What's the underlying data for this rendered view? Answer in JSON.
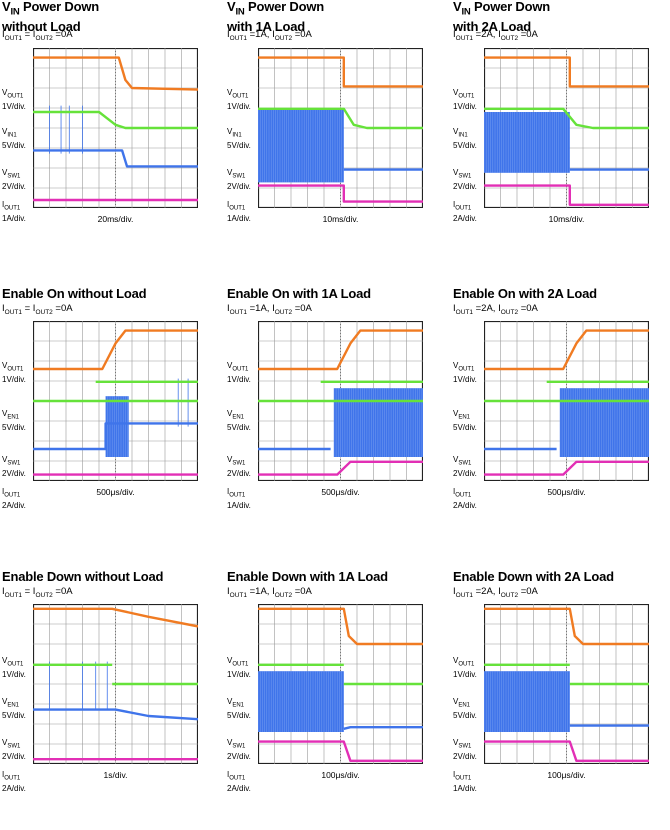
{
  "chart_data": [
    {
      "type": "line",
      "title_main": "V",
      "title_sub": "IN",
      "title_rest": " Power Down",
      "title_line2": "without Load",
      "conditions": {
        "i1": "I",
        "s1": "OUT1",
        "m": " = I",
        "s2": "OUT2",
        "e": " =0A"
      },
      "time_div": "20ms/div.",
      "channels": [
        {
          "name": "V",
          "sub": "OUT1",
          "scale": "1V/div."
        },
        {
          "name": "V",
          "sub": "IN1",
          "scale": "5V/div."
        },
        {
          "name": "V",
          "sub": "SW1",
          "scale": "2V/div."
        },
        {
          "name": "I",
          "sub": "OUT1",
          "scale": "1A/div."
        }
      ]
    },
    {
      "type": "line",
      "title_main": "V",
      "title_sub": "IN",
      "title_rest": " Power Down",
      "title_line2": "with 1A Load",
      "conditions": {
        "i1": "I",
        "s1": "OUT1",
        "m": " =1A, I",
        "s2": "OUT2",
        "e": " =0A"
      },
      "time_div": "10ms/div.",
      "channels": [
        {
          "name": "V",
          "sub": "OUT1",
          "scale": "1V/div."
        },
        {
          "name": "V",
          "sub": "IN1",
          "scale": "5V/div."
        },
        {
          "name": "V",
          "sub": "SW1",
          "scale": "2V/div."
        },
        {
          "name": "I",
          "sub": "OUT1",
          "scale": "1A/div."
        }
      ]
    },
    {
      "type": "line",
      "title_main": "V",
      "title_sub": "IN",
      "title_rest": " Power Down",
      "title_line2": "with 2A Load",
      "conditions": {
        "i1": "I",
        "s1": "OUT1",
        "m": " =2A, I",
        "s2": "OUT2",
        "e": " =0A"
      },
      "time_div": "10ms/div.",
      "channels": [
        {
          "name": "V",
          "sub": "OUT1",
          "scale": "1V/div."
        },
        {
          "name": "V",
          "sub": "IN1",
          "scale": "5V/div."
        },
        {
          "name": "V",
          "sub": "SW1",
          "scale": "2V/div."
        },
        {
          "name": "I",
          "sub": "OUT1",
          "scale": "2A/div."
        }
      ]
    },
    {
      "type": "line",
      "title_main": "Enable On without Load",
      "title_sub": "",
      "title_rest": "",
      "title_line2": "",
      "conditions": {
        "i1": "I",
        "s1": "OUT1",
        "m": " = I",
        "s2": "OUT2",
        "e": " =0A"
      },
      "time_div": "500μs/div.",
      "channels": [
        {
          "name": "V",
          "sub": "OUT1",
          "scale": "1V/div."
        },
        {
          "name": "V",
          "sub": "EN1",
          "scale": "5V/div."
        },
        {
          "name": "V",
          "sub": "SW1",
          "scale": "2V/div."
        },
        {
          "name": "I",
          "sub": "OUT1",
          "scale": "2A/div."
        }
      ]
    },
    {
      "type": "line",
      "title_main": "Enable On with 1A Load",
      "title_sub": "",
      "title_rest": "",
      "title_line2": "",
      "conditions": {
        "i1": "I",
        "s1": "OUT1",
        "m": " =1A, I",
        "s2": "OUT2",
        "e": " =0A"
      },
      "time_div": "500μs/div.",
      "channels": [
        {
          "name": "V",
          "sub": "OUT1",
          "scale": "1V/div."
        },
        {
          "name": "V",
          "sub": "EN1",
          "scale": "5V/div."
        },
        {
          "name": "V",
          "sub": "SW1",
          "scale": "2V/div."
        },
        {
          "name": "I",
          "sub": "OUT1",
          "scale": "1A/div."
        }
      ]
    },
    {
      "type": "line",
      "title_main": "Enable On with 2A Load",
      "title_sub": "",
      "title_rest": "",
      "title_line2": "",
      "conditions": {
        "i1": "I",
        "s1": "OUT1",
        "m": " =2A, I",
        "s2": "OUT2",
        "e": " =0A"
      },
      "time_div": "500μs/div.",
      "channels": [
        {
          "name": "V",
          "sub": "OUT1",
          "scale": "1V/div."
        },
        {
          "name": "V",
          "sub": "EN1",
          "scale": "5V/div."
        },
        {
          "name": "V",
          "sub": "SW1",
          "scale": "2V/div."
        },
        {
          "name": "I",
          "sub": "OUT1",
          "scale": "2A/div."
        }
      ]
    },
    {
      "type": "line",
      "title_main": "Enable Down without Load",
      "title_sub": "",
      "title_rest": "",
      "title_line2": "",
      "conditions": {
        "i1": "I",
        "s1": "OUT1",
        "m": " = I",
        "s2": "OUT2",
        "e": " =0A"
      },
      "time_div": "1s/div.",
      "channels": [
        {
          "name": "V",
          "sub": "OUT1",
          "scale": "1V/div."
        },
        {
          "name": "V",
          "sub": "EN1",
          "scale": "5V/div."
        },
        {
          "name": "V",
          "sub": "SW1",
          "scale": "2V/div."
        },
        {
          "name": "I",
          "sub": "OUT1",
          "scale": "2A/div."
        }
      ]
    },
    {
      "type": "line",
      "title_main": "Enable Down with 1A Load",
      "title_sub": "",
      "title_rest": "",
      "title_line2": "",
      "conditions": {
        "i1": "I",
        "s1": "OUT1",
        "m": " =1A, I",
        "s2": "OUT2",
        "e": " =0A"
      },
      "time_div": "100μs/div.",
      "channels": [
        {
          "name": "V",
          "sub": "OUT1",
          "scale": "1V/div."
        },
        {
          "name": "V",
          "sub": "EN1",
          "scale": "5V/div."
        },
        {
          "name": "V",
          "sub": "SW1",
          "scale": "2V/div."
        },
        {
          "name": "I",
          "sub": "OUT1",
          "scale": "2A/div."
        }
      ]
    },
    {
      "type": "line",
      "title_main": "Enable Down with 2A Load",
      "title_sub": "",
      "title_rest": "",
      "title_line2": "",
      "conditions": {
        "i1": "I",
        "s1": "OUT1",
        "m": " =2A, I",
        "s2": "OUT2",
        "e": " =0A"
      },
      "time_div": "100μs/div.",
      "channels": [
        {
          "name": "V",
          "sub": "OUT1",
          "scale": "1V/div."
        },
        {
          "name": "V",
          "sub": "EN1",
          "scale": "5V/div."
        },
        {
          "name": "V",
          "sub": "SW1",
          "scale": "2V/div."
        },
        {
          "name": "I",
          "sub": "OUT1",
          "scale": "1A/div."
        }
      ]
    }
  ],
  "colors": {
    "vout": "#f07b22",
    "vin": "#66e23a",
    "vsw": "#3f74ea",
    "iout": "#e22fb5",
    "grid": "#9a9a9a",
    "frame": "#222222"
  }
}
